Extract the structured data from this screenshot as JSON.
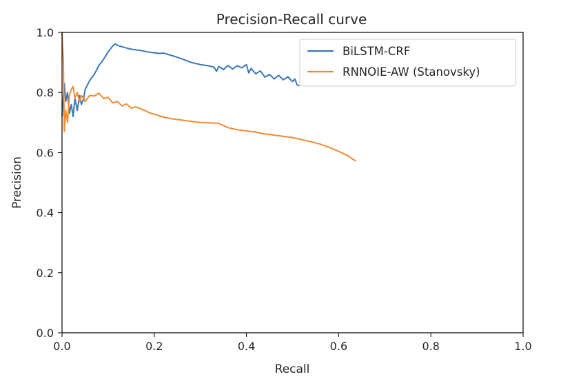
{
  "chart_data": {
    "type": "line",
    "title": "Precision-Recall curve",
    "xlabel": "Recall",
    "ylabel": "Precision",
    "xlim": [
      0.0,
      1.0
    ],
    "ylim": [
      0.0,
      1.0
    ],
    "xticks": [
      "0.0",
      "0.2",
      "0.4",
      "0.6",
      "0.8",
      "1.0"
    ],
    "yticks": [
      "0.0",
      "0.2",
      "0.4",
      "0.6",
      "0.8",
      "1.0"
    ],
    "grid": false,
    "legend_position": "top-right",
    "series": [
      {
        "name": "BiLSTM-CRF",
        "color": "#3a78b5",
        "points": [
          [
            0.0,
            0.72
          ],
          [
            0.005,
            0.83
          ],
          [
            0.008,
            0.77
          ],
          [
            0.012,
            0.8
          ],
          [
            0.016,
            0.73
          ],
          [
            0.02,
            0.76
          ],
          [
            0.024,
            0.72
          ],
          [
            0.028,
            0.78
          ],
          [
            0.033,
            0.74
          ],
          [
            0.038,
            0.79
          ],
          [
            0.042,
            0.76
          ],
          [
            0.047,
            0.78
          ],
          [
            0.05,
            0.81
          ],
          [
            0.06,
            0.84
          ],
          [
            0.07,
            0.86
          ],
          [
            0.08,
            0.89
          ],
          [
            0.09,
            0.91
          ],
          [
            0.1,
            0.935
          ],
          [
            0.11,
            0.955
          ],
          [
            0.115,
            0.962
          ],
          [
            0.12,
            0.957
          ],
          [
            0.13,
            0.952
          ],
          [
            0.14,
            0.948
          ],
          [
            0.15,
            0.944
          ],
          [
            0.17,
            0.94
          ],
          [
            0.19,
            0.934
          ],
          [
            0.21,
            0.93
          ],
          [
            0.22,
            0.931
          ],
          [
            0.24,
            0.922
          ],
          [
            0.26,
            0.912
          ],
          [
            0.28,
            0.9
          ],
          [
            0.3,
            0.893
          ],
          [
            0.32,
            0.888
          ],
          [
            0.33,
            0.884
          ],
          [
            0.335,
            0.87
          ],
          [
            0.34,
            0.887
          ],
          [
            0.35,
            0.876
          ],
          [
            0.36,
            0.89
          ],
          [
            0.37,
            0.878
          ],
          [
            0.38,
            0.889
          ],
          [
            0.39,
            0.882
          ],
          [
            0.4,
            0.893
          ],
          [
            0.405,
            0.865
          ],
          [
            0.41,
            0.88
          ],
          [
            0.42,
            0.862
          ],
          [
            0.43,
            0.872
          ],
          [
            0.44,
            0.851
          ],
          [
            0.45,
            0.86
          ],
          [
            0.46,
            0.845
          ],
          [
            0.47,
            0.857
          ],
          [
            0.48,
            0.842
          ],
          [
            0.49,
            0.852
          ],
          [
            0.5,
            0.836
          ],
          [
            0.505,
            0.845
          ],
          [
            0.51,
            0.825
          ],
          [
            0.515,
            0.822
          ]
        ]
      },
      {
        "name": "RNNOIE-AW (Stanovsky)",
        "color": "#f28a32",
        "points": [
          [
            0.0,
            1.0
          ],
          [
            0.003,
            0.9
          ],
          [
            0.005,
            0.67
          ],
          [
            0.008,
            0.74
          ],
          [
            0.012,
            0.7
          ],
          [
            0.016,
            0.79
          ],
          [
            0.02,
            0.81
          ],
          [
            0.024,
            0.82
          ],
          [
            0.028,
            0.78
          ],
          [
            0.033,
            0.8
          ],
          [
            0.038,
            0.77
          ],
          [
            0.042,
            0.79
          ],
          [
            0.047,
            0.78
          ],
          [
            0.05,
            0.77
          ],
          [
            0.06,
            0.79
          ],
          [
            0.07,
            0.788
          ],
          [
            0.08,
            0.798
          ],
          [
            0.09,
            0.78
          ],
          [
            0.1,
            0.784
          ],
          [
            0.11,
            0.765
          ],
          [
            0.12,
            0.77
          ],
          [
            0.13,
            0.755
          ],
          [
            0.14,
            0.762
          ],
          [
            0.15,
            0.748
          ],
          [
            0.16,
            0.752
          ],
          [
            0.18,
            0.74
          ],
          [
            0.19,
            0.732
          ],
          [
            0.2,
            0.728
          ],
          [
            0.22,
            0.718
          ],
          [
            0.24,
            0.712
          ],
          [
            0.26,
            0.708
          ],
          [
            0.28,
            0.704
          ],
          [
            0.3,
            0.7
          ],
          [
            0.32,
            0.699
          ],
          [
            0.34,
            0.697
          ],
          [
            0.36,
            0.683
          ],
          [
            0.38,
            0.676
          ],
          [
            0.4,
            0.672
          ],
          [
            0.42,
            0.668
          ],
          [
            0.44,
            0.662
          ],
          [
            0.46,
            0.658
          ],
          [
            0.48,
            0.654
          ],
          [
            0.5,
            0.65
          ],
          [
            0.52,
            0.643
          ],
          [
            0.54,
            0.636
          ],
          [
            0.56,
            0.628
          ],
          [
            0.58,
            0.617
          ],
          [
            0.6,
            0.604
          ],
          [
            0.62,
            0.59
          ],
          [
            0.63,
            0.578
          ],
          [
            0.638,
            0.572
          ]
        ]
      }
    ]
  }
}
